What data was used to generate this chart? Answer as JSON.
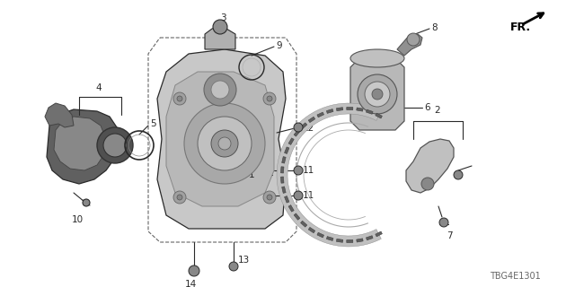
{
  "bg_color": "#ffffff",
  "line_color": "#2a2a2a",
  "footer_text": "TBG4E1301",
  "label_fontsize": 7.5,
  "footer_fontsize": 7
}
